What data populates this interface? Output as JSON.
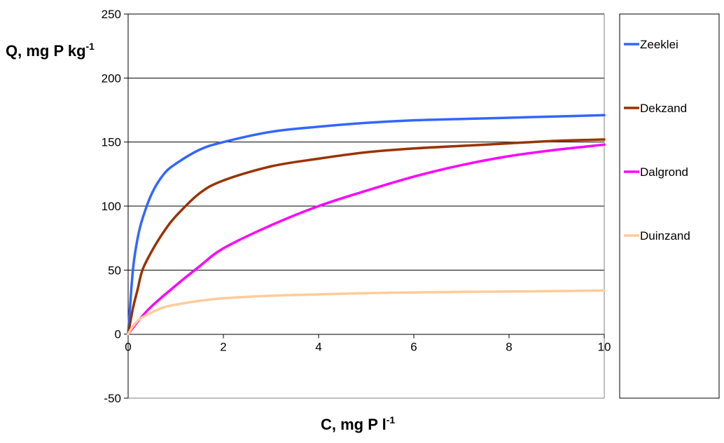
{
  "chart_data": {
    "type": "line",
    "title": "",
    "ylabel": "Q, mg P kg",
    "ylabel_sup": "-1",
    "xlabel": "C, mg P l",
    "xlabel_sup": "-1",
    "xlim": [
      0,
      10
    ],
    "ylim": [
      -50,
      250
    ],
    "xticks": [
      0,
      2,
      4,
      6,
      8,
      10
    ],
    "yticks": [
      -50,
      0,
      50,
      100,
      150,
      200,
      250
    ],
    "grid": "horizontal",
    "legend_position": "right",
    "series": [
      {
        "name": "Zeeklei",
        "color": "#3366ff",
        "x": [
          0,
          0.1,
          0.2,
          0.3,
          0.5,
          0.75,
          1,
          1.5,
          2,
          3,
          4,
          5,
          6,
          7,
          8,
          9,
          10
        ],
        "y": [
          0,
          50,
          75,
          90,
          110,
          125,
          133,
          144,
          150,
          158,
          162,
          165,
          167,
          168,
          169,
          170,
          171
        ]
      },
      {
        "name": "Dekzand",
        "color": "#993300",
        "x": [
          0,
          0.1,
          0.2,
          0.3,
          0.5,
          0.75,
          1,
          1.5,
          2,
          3,
          4,
          5,
          6,
          7,
          8,
          9,
          10
        ],
        "y": [
          0,
          20,
          35,
          50,
          65,
          80,
          92,
          110,
          120,
          131,
          137,
          142,
          145,
          147,
          149,
          151,
          152
        ]
      },
      {
        "name": "Dalgrond",
        "color": "#ff00ff",
        "x": [
          0,
          0.25,
          0.5,
          1,
          1.5,
          2,
          3,
          4,
          5,
          6,
          7,
          8,
          9,
          10
        ],
        "y": [
          0,
          12,
          22,
          38,
          53,
          67,
          85,
          100,
          112,
          123,
          132,
          139,
          144,
          148
        ]
      },
      {
        "name": "Duinzand",
        "color": "#ffcc99",
        "x": [
          0,
          0.1,
          0.25,
          0.5,
          0.75,
          1,
          1.5,
          2,
          3,
          4,
          5,
          6,
          7,
          8,
          9,
          10
        ],
        "y": [
          0,
          6,
          12,
          17,
          21,
          23,
          26,
          28,
          30,
          31,
          32,
          32.5,
          33,
          33.3,
          33.6,
          34
        ]
      }
    ]
  }
}
